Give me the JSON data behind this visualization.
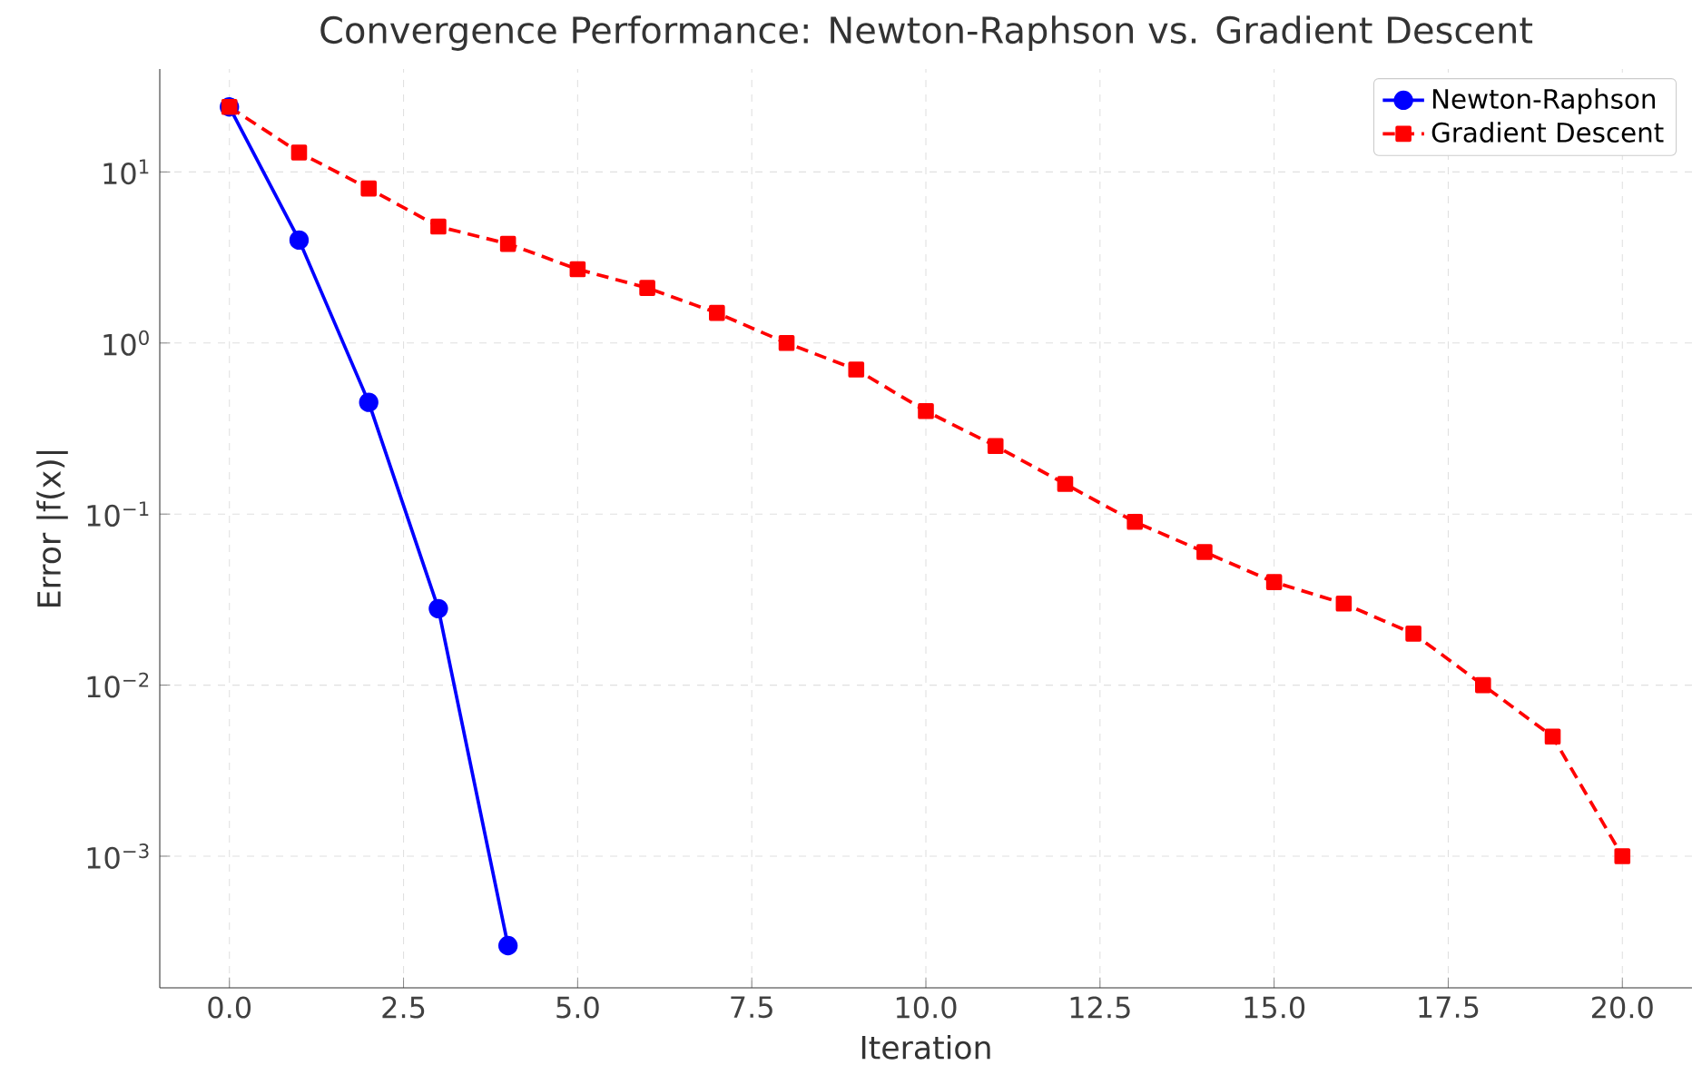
{
  "chart_data": {
    "type": "line",
    "title": "Convergence Performance: Newton-Raphson vs. Gradient Descent",
    "xlabel": "Iteration",
    "ylabel": "Error |f(x)|",
    "log": "y",
    "grid": true,
    "legend": "top right",
    "xlim": [
      -1,
      21
    ],
    "ylim": [
      0.00017,
      40
    ],
    "xticks": [
      {
        "value": 0,
        "label": "0.0"
      },
      {
        "value": 2.5,
        "label": "2.5"
      },
      {
        "value": 5,
        "label": "5.0"
      },
      {
        "value": 7.5,
        "label": "7.5"
      },
      {
        "value": 10,
        "label": "10.0"
      },
      {
        "value": 12.5,
        "label": "12.5"
      },
      {
        "value": 15,
        "label": "15.0"
      },
      {
        "value": 17.5,
        "label": "17.5"
      },
      {
        "value": 20,
        "label": "20.0"
      }
    ],
    "yticks": [
      {
        "value": 0.001,
        "label": "10$^{−3}$"
      },
      {
        "value": 0.01,
        "label": "10$^{−2}$"
      },
      {
        "value": 0.1,
        "label": "10$^{−1}$"
      },
      {
        "value": 1,
        "label": "10$^{0}$"
      },
      {
        "value": 10,
        "label": "10$^{1}$"
      }
    ],
    "series": [
      {
        "name": "Newton-Raphson",
        "color": "#0000ff",
        "marker": "circle",
        "line_style": "solid",
        "x": [
          0,
          1,
          2,
          3,
          4
        ],
        "values": [
          24,
          4.0,
          0.45,
          0.028,
          0.0003
        ]
      },
      {
        "name": "Gradient Descent",
        "color": "#ff0000",
        "marker": "square",
        "line_style": "dashed",
        "x": [
          0,
          1,
          2,
          3,
          4,
          5,
          6,
          7,
          8,
          9,
          10,
          11,
          12,
          13,
          14,
          15,
          16,
          17,
          18,
          19,
          20
        ],
        "values": [
          24,
          13,
          8,
          4.8,
          3.8,
          2.7,
          2.1,
          1.5,
          1.0,
          0.7,
          0.4,
          0.25,
          0.15,
          0.09,
          0.06,
          0.04,
          0.03,
          0.02,
          0.01,
          0.005,
          0.001
        ]
      }
    ]
  }
}
